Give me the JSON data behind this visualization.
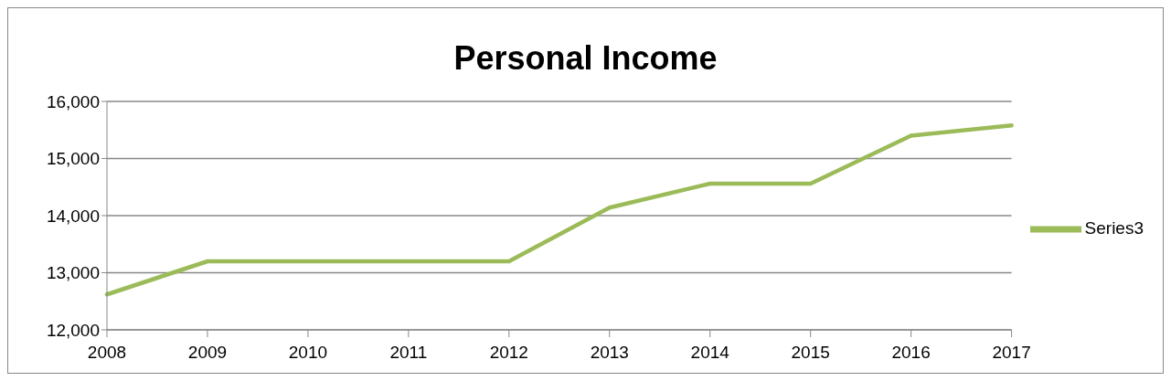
{
  "chart_data": {
    "type": "line",
    "title": "Personal Income",
    "categories": [
      "2008",
      "2009",
      "2010",
      "2011",
      "2012",
      "2013",
      "2014",
      "2015",
      "2016",
      "2017"
    ],
    "series": [
      {
        "name": "Series3",
        "color": "#9bbb59",
        "values": [
          12620,
          13200,
          13200,
          13200,
          13200,
          14140,
          14560,
          14560,
          15400,
          15580
        ]
      }
    ],
    "ylim": [
      12000,
      16000
    ],
    "yticks": [
      {
        "value": 12000,
        "label": "12,000"
      },
      {
        "value": 13000,
        "label": "13,000"
      },
      {
        "value": 14000,
        "label": "14,000"
      },
      {
        "value": 15000,
        "label": "15,000"
      },
      {
        "value": 16000,
        "label": "16,000"
      }
    ],
    "grid": "y",
    "legend": "right",
    "marker": "none",
    "line_style": "solid"
  }
}
